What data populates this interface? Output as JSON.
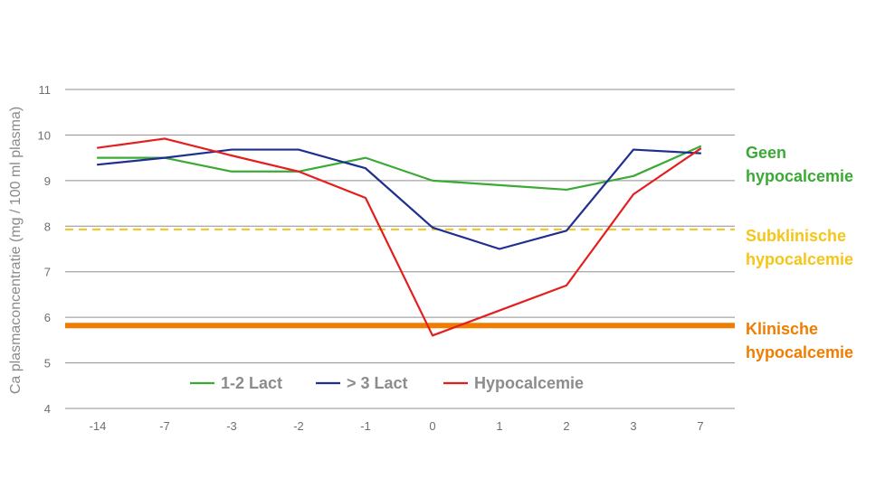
{
  "chart_data": {
    "type": "line",
    "title": "",
    "ylabel": "Ca plasmaconcentratie (mg / 100 ml plasma)",
    "xlabel": "",
    "categories": [
      "-14",
      "-7",
      "-3",
      "-2",
      "-1",
      "0",
      "1",
      "2",
      "3",
      "7"
    ],
    "ylim": [
      4,
      11
    ],
    "yticks": [
      4,
      5,
      6,
      7,
      8,
      9,
      10,
      11
    ],
    "grid": true,
    "legend_position": "bottom-inside",
    "series": [
      {
        "name": "1-2 Lact",
        "color": "#3aaa35",
        "values": [
          9.5,
          9.5,
          9.2,
          9.2,
          9.5,
          9.0,
          8.9,
          8.8,
          9.1,
          9.75
        ]
      },
      {
        "name": "> 3 Lact",
        "color": "#1f2f8f",
        "values": [
          9.35,
          9.5,
          9.68,
          9.68,
          9.27,
          7.97,
          7.5,
          7.9,
          9.68,
          9.6
        ]
      },
      {
        "name": "Hypocalcemie",
        "color": "#e41e1e",
        "values": [
          9.72,
          9.92,
          9.55,
          9.2,
          8.62,
          5.6,
          6.15,
          6.7,
          8.7,
          9.7
        ]
      }
    ],
    "thresholds": [
      {
        "value": 7.93,
        "style": "dashed",
        "color": "#f5c518"
      },
      {
        "value": 5.82,
        "style": "solid-thick",
        "color": "#f07d00"
      }
    ],
    "annotations": [
      {
        "lines": [
          "Geen",
          "hypocalcemie"
        ],
        "color": "#3aaa35"
      },
      {
        "lines": [
          "Subklinische",
          "hypocalcemie"
        ],
        "color": "#f5c518"
      },
      {
        "lines": [
          "Klinische",
          "hypocalcemie"
        ],
        "color": "#f07d00"
      }
    ]
  }
}
